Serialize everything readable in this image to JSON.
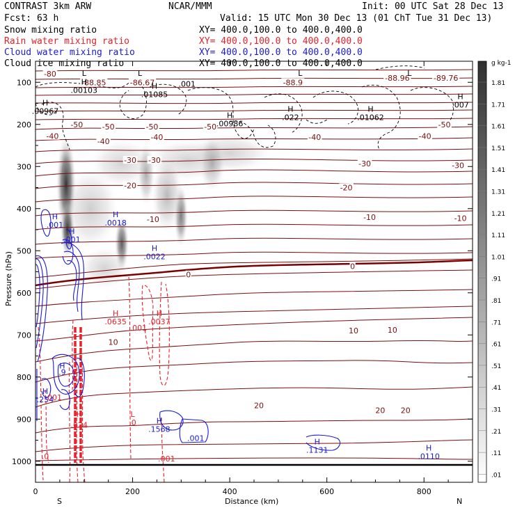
{
  "header": {
    "left1": "CONTRAST  3km ARW",
    "center1": "NCAR/MMM",
    "right1": "Init: 00 UTC Sat 28 Dec 13",
    "left2": "Fcst:    63 h",
    "right2": "Valid: 15 UTC Mon 30 Dec 13 (01 ChT Tue 31 Dec 13)"
  },
  "fields": [
    {
      "name": "Snow mixing ratio",
      "xy": "XY= 400.0,100.0 to 400.0,400.0",
      "color": "#000000"
    },
    {
      "name": "Rain water mixing ratio",
      "xy": "XY= 400.0,100.0 to 400.0,400.0",
      "color": "#e8202a"
    },
    {
      "name": "Cloud water mixing ratio",
      "xy": "XY= 400.0,100.0 to 400.0,400.0",
      "color": "#1a1ad8"
    },
    {
      "name": "Cloud ice mixing ratio",
      "xy": "XY= 400.0,100.0 to 400.0,400.0",
      "color": "#000000"
    }
  ],
  "colors": {
    "temp": "#7a0e0e",
    "freezing": "#7a0000",
    "rain": "#e8202a",
    "cloud": "#1a1ad8",
    "ice": "#000000",
    "snow": "#606060"
  },
  "chart_data": {
    "type": "heatmap",
    "xlabel": "Distance (km)",
    "ylabel": "Pressure (hPa)",
    "xlim": [
      0,
      900
    ],
    "ylim": [
      1050,
      50
    ],
    "x_ticks": [
      0,
      200,
      400,
      600,
      800
    ],
    "x_tick_labels": [
      "0",
      "200",
      "400",
      "600",
      "800"
    ],
    "y_ticks": [
      100,
      200,
      300,
      400,
      500,
      600,
      700,
      800,
      900,
      1000
    ],
    "y_tick_labels": [
      "100",
      "200",
      "300",
      "400",
      "500",
      "600",
      "700",
      "800",
      "900",
      "1000"
    ],
    "endpoints": {
      "left": "S",
      "right": "N"
    },
    "colorbar": {
      "unit": "g kg-1",
      "labels": [
        "1.81",
        "1.71",
        "1.61",
        "1.51",
        "1.41",
        "1.31",
        "1.21",
        "1.11",
        "1.01",
        ".91",
        ".81",
        ".71",
        ".61",
        ".51",
        ".41",
        ".31",
        ".21",
        ".11",
        ".01"
      ]
    },
    "temperature_contours": [
      {
        "label": "-80",
        "x": 30,
        "p": 80
      },
      {
        "label": "-88.85",
        "x": 120,
        "p": 100
      },
      {
        "label": "-86.67",
        "x": 220,
        "p": 100
      },
      {
        "label": "-88.9",
        "x": 530,
        "p": 100
      },
      {
        "label": "-88.96",
        "x": 745,
        "p": 90
      },
      {
        "label": "-89.76",
        "x": 845,
        "p": 90
      },
      {
        "label": "-50",
        "x": 85,
        "p": 200
      },
      {
        "label": "-50",
        "x": 150,
        "p": 205
      },
      {
        "label": "-50",
        "x": 240,
        "p": 205
      },
      {
        "label": "-50",
        "x": 360,
        "p": 205
      },
      {
        "label": "-50",
        "x": 842,
        "p": 200
      },
      {
        "label": "-40",
        "x": 35,
        "p": 228
      },
      {
        "label": "-40",
        "x": 140,
        "p": 240
      },
      {
        "label": "-40",
        "x": 250,
        "p": 230
      },
      {
        "label": "-40",
        "x": 575,
        "p": 230
      },
      {
        "label": "-40",
        "x": 802,
        "p": 228
      },
      {
        "label": "-30",
        "x": 195,
        "p": 285
      },
      {
        "label": "-30",
        "x": 245,
        "p": 285
      },
      {
        "label": "-30",
        "x": 678,
        "p": 293
      },
      {
        "label": "-30",
        "x": 870,
        "p": 297
      },
      {
        "label": "-20",
        "x": 195,
        "p": 345
      },
      {
        "label": "-20",
        "x": 640,
        "p": 350
      },
      {
        "label": "-10",
        "x": 242,
        "p": 425
      },
      {
        "label": "-10",
        "x": 688,
        "p": 420
      },
      {
        "label": "-10",
        "x": 875,
        "p": 423
      },
      {
        "label": "0",
        "x": 315,
        "p": 557
      },
      {
        "label": "0",
        "x": 653,
        "p": 537
      },
      {
        "label": "10",
        "x": 160,
        "p": 717
      },
      {
        "label": "10",
        "x": 655,
        "p": 690
      },
      {
        "label": "10",
        "x": 735,
        "p": 688
      },
      {
        "label": "20",
        "x": 460,
        "p": 867
      },
      {
        "label": "20",
        "x": 710,
        "p": 879
      },
      {
        "label": "20",
        "x": 762,
        "p": 879
      }
    ],
    "extrema": [
      {
        "type": "L",
        "x": 100,
        "p": 85,
        "value": "",
        "color": "ice"
      },
      {
        "type": "L",
        "x": 215,
        "p": 85,
        "value": "",
        "color": "ice"
      },
      {
        "type": "H",
        "x": 245,
        "p": 115,
        "value": ".01085",
        "color": "ice"
      },
      {
        "type": "H",
        "x": 100,
        "p": 105,
        "value": ".00103",
        "color": "ice"
      },
      {
        "type": "L",
        "x": 545,
        "p": 85,
        "value": "",
        "color": "ice"
      },
      {
        "type": "L",
        "x": 770,
        "p": 85,
        "value": "",
        "color": "ice"
      },
      {
        "type": "H",
        "x": 20,
        "p": 155,
        "value": ".00967",
        "color": "ice"
      },
      {
        "type": "H",
        "x": 400,
        "p": 185,
        "value": ".00986",
        "color": "ice"
      },
      {
        "type": "H",
        "x": 525,
        "p": 170,
        "value": ".022",
        "color": "ice"
      },
      {
        "type": "H",
        "x": 690,
        "p": 170,
        "value": ".01062",
        "color": "ice"
      },
      {
        "type": "H",
        "x": 875,
        "p": 140,
        "value": ".007",
        "color": "ice"
      },
      {
        "type": "H",
        "x": 40,
        "p": 425,
        "value": ".001",
        "color": "cloud"
      },
      {
        "type": "H",
        "x": 165,
        "p": 420,
        "value": ".0018",
        "color": "cloud"
      },
      {
        "type": "H",
        "x": 75,
        "p": 460,
        "value": ".001",
        "color": "cloud"
      },
      {
        "type": "H",
        "x": 245,
        "p": 500,
        "value": ".0022",
        "color": "cloud"
      },
      {
        "type": "H",
        "x": 165,
        "p": 655,
        "value": ".0635",
        "color": "rain"
      },
      {
        "type": "H",
        "x": 255,
        "p": 655,
        "value": ".0037",
        "color": "rain"
      },
      {
        "type": "H",
        "x": 55,
        "p": 780,
        "value": "",
        "color": "cloud"
      },
      {
        "type": "H",
        "x": 20,
        "p": 840,
        "value": ".254",
        "color": "cloud"
      },
      {
        "type": "H",
        "x": 90,
        "p": 895,
        "value": "",
        "color": "rain"
      },
      {
        "type": "L",
        "x": 200,
        "p": 895,
        "value": ".0",
        "color": "rain"
      },
      {
        "type": "H",
        "x": 255,
        "p": 910,
        "value": ".1568",
        "color": "cloud"
      },
      {
        "type": "H",
        "x": 580,
        "p": 960,
        "value": ".1131",
        "color": "cloud"
      },
      {
        "type": "H",
        "x": 810,
        "p": 975,
        "value": ".0110",
        "color": "cloud"
      }
    ],
    "annotations": [
      {
        "text": ".001",
        "x": 312,
        "p": 110,
        "color": "ice"
      },
      {
        "text": ".001",
        "x": 212,
        "p": 690,
        "color": "rain"
      },
      {
        "text": ".001",
        "x": 330,
        "p": 952,
        "color": "cloud"
      },
      {
        "text": ".001",
        "x": 270,
        "p": 1000,
        "color": "rain"
      },
      {
        "text": ".001",
        "x": 37,
        "p": 855,
        "color": "rain"
      },
      {
        "text": ".0",
        "x": 20,
        "p": 995,
        "color": "rain"
      },
      {
        "text": ".9",
        "x": 55,
        "p": 795,
        "color": "cloud"
      },
      {
        "text": ".624",
        "x": 90,
        "p": 920,
        "color": "rain"
      }
    ]
  }
}
